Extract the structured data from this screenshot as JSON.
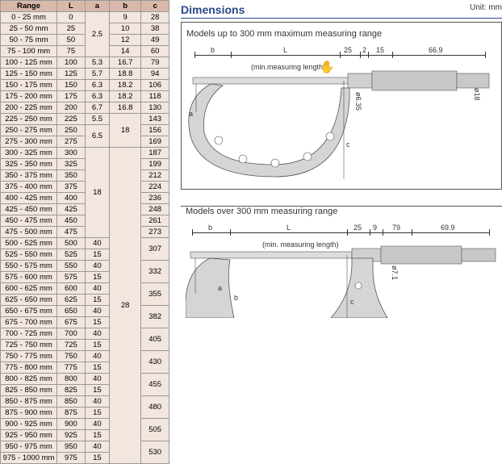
{
  "table": {
    "headers": [
      "Range",
      "L",
      "a",
      "b",
      "c"
    ],
    "rows": [
      {
        "range": "0 - 25 mm",
        "L": "0",
        "a_group": "2.5",
        "a_span": 4,
        "b": "9",
        "c": "28"
      },
      {
        "range": "25 - 50 mm",
        "L": "25",
        "b": "10",
        "c": "38"
      },
      {
        "range": "50 - 75 mm",
        "L": "50",
        "b": "12",
        "c": "49"
      },
      {
        "range": "75 - 100 mm",
        "L": "75",
        "b": "14",
        "c": "60"
      },
      {
        "range": "100 - 125 mm",
        "L": "100",
        "a": "5.3",
        "b": "16.7",
        "c": "79"
      },
      {
        "range": "125 - 150 mm",
        "L": "125",
        "a": "5.7",
        "b": "18.8",
        "c": "94"
      },
      {
        "range": "150 - 175 mm",
        "L": "150",
        "a": "6.3",
        "b": "18.2",
        "c": "106"
      },
      {
        "range": "175 - 200 mm",
        "L": "175",
        "a": "6.3",
        "b": "18.2",
        "c": "118"
      },
      {
        "range": "200 - 225 mm",
        "L": "200",
        "a": "6.7",
        "b": "16.8",
        "c": "130"
      },
      {
        "range": "225 - 250 mm",
        "L": "225",
        "a": "5.5",
        "a_span": 1,
        "b_group": "18",
        "b_span": 3,
        "c": "143"
      },
      {
        "range": "250 - 275 mm",
        "L": "250",
        "a_group": "6.5",
        "a_span": 2,
        "c": "156"
      },
      {
        "range": "275 - 300 mm",
        "L": "275",
        "c": "169"
      },
      {
        "range": "300 - 325 mm",
        "L": "300",
        "a_group": "18",
        "a_span": 8,
        "b_group": "28",
        "b_span": 28,
        "c": "187"
      },
      {
        "range": "325 - 350 mm",
        "L": "325",
        "c": "199"
      },
      {
        "range": "350 - 375 mm",
        "L": "350",
        "c": "212"
      },
      {
        "range": "375 - 400 mm",
        "L": "375",
        "c": "224"
      },
      {
        "range": "400 - 425 mm",
        "L": "400",
        "c": "236"
      },
      {
        "range": "425 - 450 mm",
        "L": "425",
        "c": "248"
      },
      {
        "range": "450 - 475 mm",
        "L": "450",
        "c": "261"
      },
      {
        "range": "475 - 500 mm",
        "L": "475",
        "c": "273"
      },
      {
        "range": "500 - 525 mm",
        "L": "500",
        "a": "40",
        "c_group": "307",
        "c_span": 2
      },
      {
        "range": "525 - 550 mm",
        "L": "525",
        "a": "15"
      },
      {
        "range": "550 - 575 mm",
        "L": "550",
        "a": "40",
        "c_group": "332",
        "c_span": 2
      },
      {
        "range": "575 - 600 mm",
        "L": "575",
        "a": "15"
      },
      {
        "range": "600 - 625 mm",
        "L": "600",
        "a": "40",
        "c_group": "355",
        "c_span": 2
      },
      {
        "range": "625 - 650 mm",
        "L": "625",
        "a": "15"
      },
      {
        "range": "650 - 675 mm",
        "L": "650",
        "a": "40",
        "c_group": "382",
        "c_span": 2
      },
      {
        "range": "675 - 700 mm",
        "L": "675",
        "a": "15"
      },
      {
        "range": "700 - 725 mm",
        "L": "700",
        "a": "40",
        "c_group": "405",
        "c_span": 2
      },
      {
        "range": "725 - 750 mm",
        "L": "725",
        "a": "15"
      },
      {
        "range": "750 - 775 mm",
        "L": "750",
        "a": "40",
        "c_group": "430",
        "c_span": 2
      },
      {
        "range": "775 - 800 mm",
        "L": "775",
        "a": "15"
      },
      {
        "range": "800 - 825 mm",
        "L": "800",
        "a": "40",
        "c_group": "455",
        "c_span": 2
      },
      {
        "range": "825 - 850 mm",
        "L": "825",
        "a": "15"
      },
      {
        "range": "850 - 875 mm",
        "L": "850",
        "a": "40",
        "c_group": "480",
        "c_span": 2
      },
      {
        "range": "875 - 900 mm",
        "L": "875",
        "a": "15"
      },
      {
        "range": "900 - 925 mm",
        "L": "900",
        "a": "40",
        "c_group": "505",
        "c_span": 2
      },
      {
        "range": "925 - 950 mm",
        "L": "925",
        "a": "15"
      },
      {
        "range": "950 - 975 mm",
        "L": "950",
        "a": "40",
        "c_group": "530",
        "c_span": 2
      },
      {
        "range": "975 - 1000 mm",
        "L": "975",
        "a": "15"
      }
    ]
  },
  "dimensions": {
    "title": "Dimensions",
    "unit": "Unit: mm",
    "upper_label": "Models up to 300 mm maximum measuring range",
    "lower_label": "Models over 300 mm measuring range",
    "min_len": "(min.measuring length)",
    "min_len2": "(min. measuring length)",
    "labels": {
      "b": "b",
      "L": "L",
      "a": "a",
      "c": "c",
      "d25": "25",
      "d2": "2",
      "d15": "15",
      "d669": "66.9",
      "phi": "ø18",
      "phi65": "ø6.35",
      "d9": "9",
      "d79": "79",
      "d699": "69.9",
      "phi2": "ø7.1"
    },
    "colors": {
      "title": "#2a4a8a",
      "border": "#555555",
      "line": "#333333",
      "metal": "#b9b9b9",
      "dark": "#7a7a7a"
    }
  }
}
